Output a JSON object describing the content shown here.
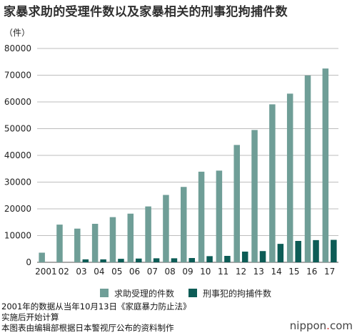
{
  "title": "家暴求助的受理件数以及家暴相关的刑事犯拘捕件数",
  "unit_label": "（件）",
  "chart_data": {
    "type": "bar",
    "title": "家暴求助的受理件数以及家暴相关的刑事犯拘捕件数",
    "categories": [
      "2001",
      "02",
      "03",
      "04",
      "05",
      "06",
      "07",
      "08",
      "09",
      "10",
      "11",
      "12",
      "13",
      "14",
      "15",
      "16",
      "17"
    ],
    "series": [
      {
        "name": "求助受理的件数",
        "color": "#6f9e97",
        "values": [
          3600,
          14100,
          12600,
          14400,
          16900,
          18200,
          20900,
          25200,
          28200,
          33900,
          34300,
          43900,
          49500,
          59100,
          63100,
          69900,
          72500
        ]
      },
      {
        "name": "刑事犯的拘捕件数",
        "color": "#0d5c56",
        "values": [
          0,
          0,
          1100,
          1100,
          1300,
          1400,
          1500,
          1500,
          1600,
          2300,
          2400,
          4000,
          4200,
          6900,
          8000,
          8300,
          8400
        ]
      }
    ],
    "ylim": [
      0,
      80000
    ],
    "yticks": [
      "0",
      "10000",
      "20000",
      "30000",
      "40000",
      "50000",
      "60000",
      "70000",
      "80000"
    ],
    "ylabel": "（件）",
    "xlabel": "",
    "grid": true,
    "legend_position": "bottom"
  },
  "notes": [
    "2001年的数据从当年10月13日《家庭暴力防止法》",
    "实施后开始计算",
    "本图表由编辑部根据日本警视厅公布的资料制作"
  ],
  "brand": {
    "prefix": "nippon",
    "dot": ".",
    "suffix": "com"
  }
}
